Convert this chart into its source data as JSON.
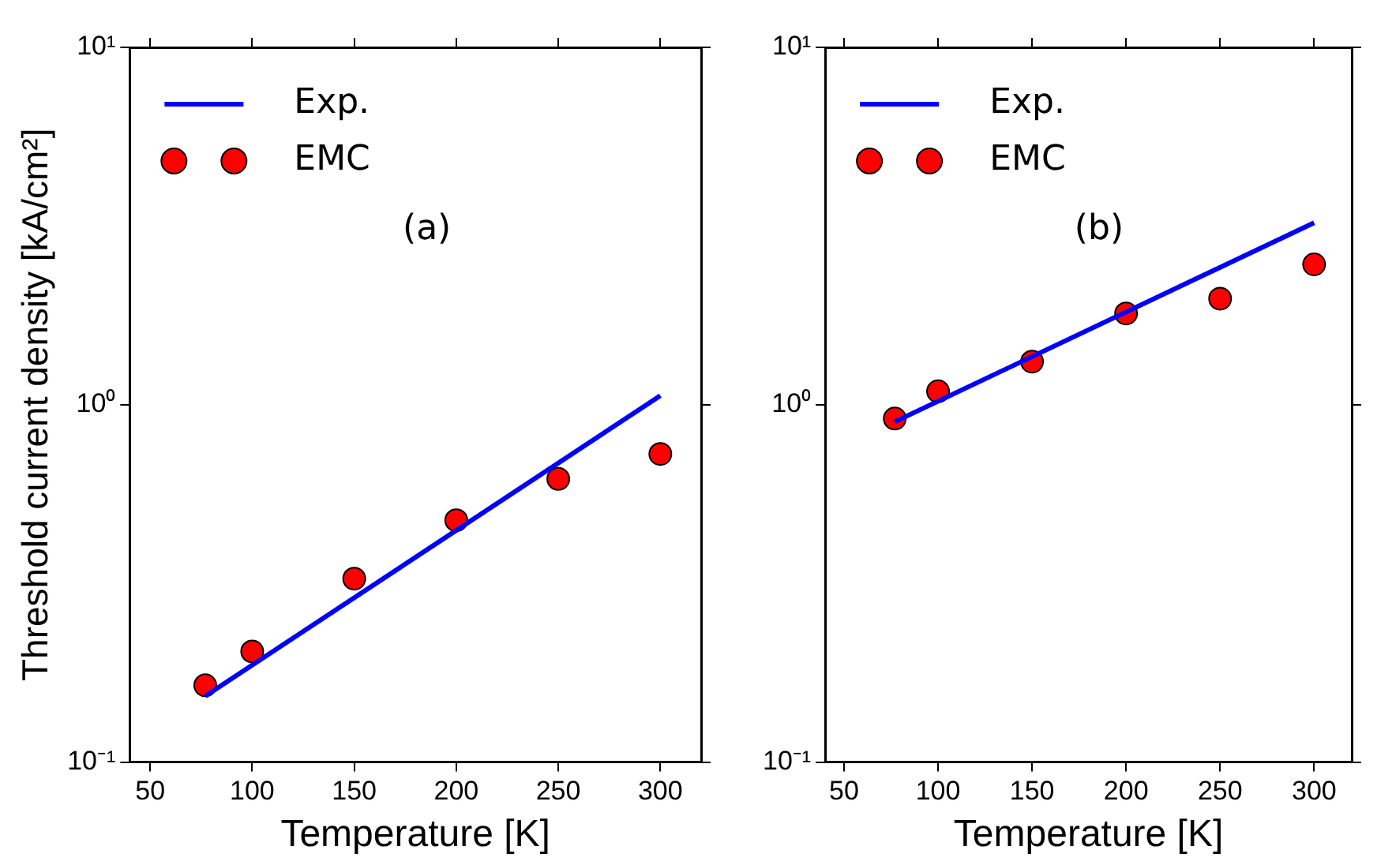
{
  "chart_data": [
    {
      "type": "scatter",
      "xlabel": "Temperature [K]",
      "ylabel": "Threshold current density [kA/cm²]",
      "xlim": [
        40,
        320
      ],
      "xticks": [
        50,
        100,
        150,
        200,
        250,
        300
      ],
      "ylim": [
        0.1,
        10
      ],
      "yticks": [
        {
          "value": 0.1,
          "label": "10⁻¹"
        },
        {
          "value": 1,
          "label": "10⁰"
        },
        {
          "value": 10,
          "label": "10¹"
        }
      ],
      "log": "y",
      "grid": false,
      "legend": "top left",
      "annotations": [
        "(a)"
      ],
      "series": [
        {
          "name": "Exp.",
          "type": "line",
          "color": "#0000ff",
          "marker": "none",
          "line_style": "solid",
          "x": [
            77,
            300
          ],
          "values": [
            0.153,
            1.06
          ]
        },
        {
          "name": "EMC",
          "type": "scatter",
          "color": "#ff0000",
          "marker": "circle",
          "x": [
            77,
            100,
            150,
            200,
            250,
            300
          ],
          "values": [
            0.164,
            0.204,
            0.326,
            0.475,
            0.62,
            0.728
          ]
        }
      ]
    },
    {
      "type": "scatter",
      "xlabel": "Temperature [K]",
      "xlim": [
        40,
        320
      ],
      "xticks": [
        50,
        100,
        150,
        200,
        250,
        300
      ],
      "ylim": [
        0.1,
        10
      ],
      "yticks": [
        {
          "value": 0.1,
          "label": "10⁻¹"
        },
        {
          "value": 1,
          "label": "10⁰"
        },
        {
          "value": 10,
          "label": "10¹"
        }
      ],
      "log": "y",
      "grid": false,
      "legend": "top left",
      "annotations": [
        "(b)"
      ],
      "series": [
        {
          "name": "Exp.",
          "type": "line",
          "color": "#0000ff",
          "marker": "none",
          "line_style": "solid",
          "x": [
            77,
            300
          ],
          "values": [
            0.896,
            3.23
          ]
        },
        {
          "name": "EMC",
          "type": "scatter",
          "color": "#ff0000",
          "marker": "circle",
          "x": [
            77,
            100,
            150,
            200,
            250,
            300
          ],
          "values": [
            0.915,
            1.09,
            1.32,
            1.8,
            1.98,
            2.47
          ]
        }
      ]
    }
  ]
}
